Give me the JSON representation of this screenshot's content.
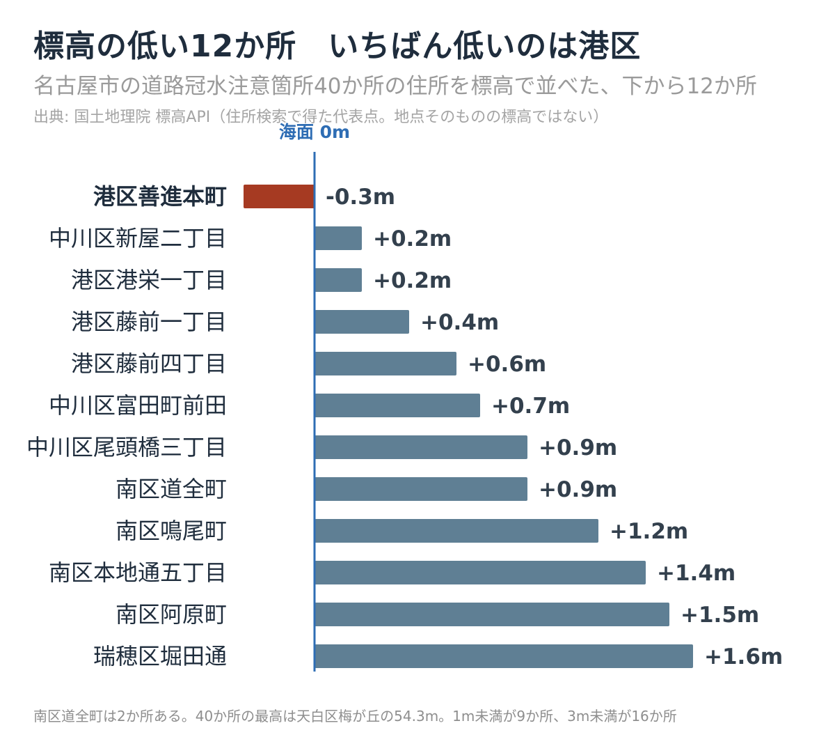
{
  "header": {
    "title": "標高の低い12か所　いちばん低いのは港区",
    "subtitle": "名古屋市の道路冠水注意箇所40か所の住所を標高で並べた、下から12か所",
    "source": "出典: 国土地理院 標高API（住所検索で得た代表点。地点そのものの標高ではない）"
  },
  "footer": {
    "note": "南区道全町は2か所ある。40か所の最高は天白区梅が丘の54.3m。1m未満が9か所、3m未満が16か所"
  },
  "chart_data": {
    "type": "bar",
    "orientation": "horizontal",
    "title": "標高の低い12か所　いちばん低いのは港区",
    "xlabel": "",
    "ylabel": "",
    "reference_line": {
      "value": 0,
      "label": "海面 0m"
    },
    "categories": [
      "港区善進本町",
      "中川区新屋二丁目",
      "港区港栄一丁目",
      "港区藤前一丁目",
      "港区藤前四丁目",
      "中川区富田町前田",
      "中川区尾頭橋三丁目",
      "南区道全町",
      "南区鳴尾町",
      "南区本地通五丁目",
      "南区阿原町",
      "瑞穂区堀田通"
    ],
    "values": [
      -0.3,
      0.2,
      0.2,
      0.4,
      0.6,
      0.7,
      0.9,
      0.9,
      1.2,
      1.4,
      1.5,
      1.6
    ],
    "value_labels": [
      "-0.3m",
      "+0.2m",
      "+0.2m",
      "+0.4m",
      "+0.6m",
      "+0.7m",
      "+0.9m",
      "+0.9m",
      "+1.2m",
      "+1.4m",
      "+1.5m",
      "+1.6m"
    ],
    "highlight_index": 0,
    "colors": {
      "highlight": "#a63a22",
      "bar": "#5f7f94",
      "zero_line": "#2e6db4",
      "label": "#1f2d3d",
      "value_label": "#33404d"
    }
  }
}
